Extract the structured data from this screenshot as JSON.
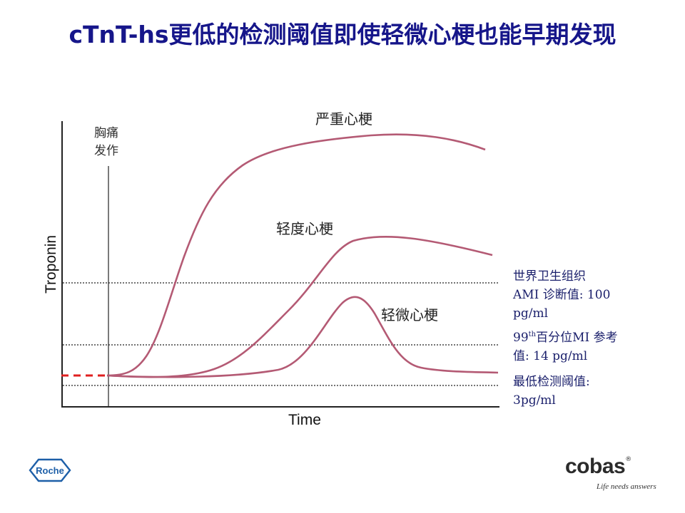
{
  "title": "cTnT-hs更低的检测阈值即使轻微心梗也能早期发现",
  "diagram": {
    "y_axis_label": "Troponin",
    "x_axis_label": "Time",
    "onset_label_line1": "胸痛",
    "onset_label_line2": "发作",
    "curves": {
      "severe": "严重心梗",
      "moderate": "轻度心梗",
      "mild": "轻微心梗"
    },
    "curve_color": "#b45a74",
    "baseline_color": "#e02020",
    "thresholds": {
      "who_line1": "世界卫生组织",
      "who_line2": "AMI 诊断值: 100",
      "who_line3": "pg/ml",
      "p99_line1_main": "99",
      "p99_line1_sup": "th",
      "p99_line1_rest": "百分位MI 参考",
      "p99_line2": "值: 14 pg/ml",
      "lod_line1": "最低检测阈值:",
      "lod_line2": "3pg/ml"
    }
  },
  "logos": {
    "roche": "Roche",
    "cobas_name": "cobas",
    "cobas_reg": "®",
    "cobas_tagline": "Life needs answers"
  }
}
